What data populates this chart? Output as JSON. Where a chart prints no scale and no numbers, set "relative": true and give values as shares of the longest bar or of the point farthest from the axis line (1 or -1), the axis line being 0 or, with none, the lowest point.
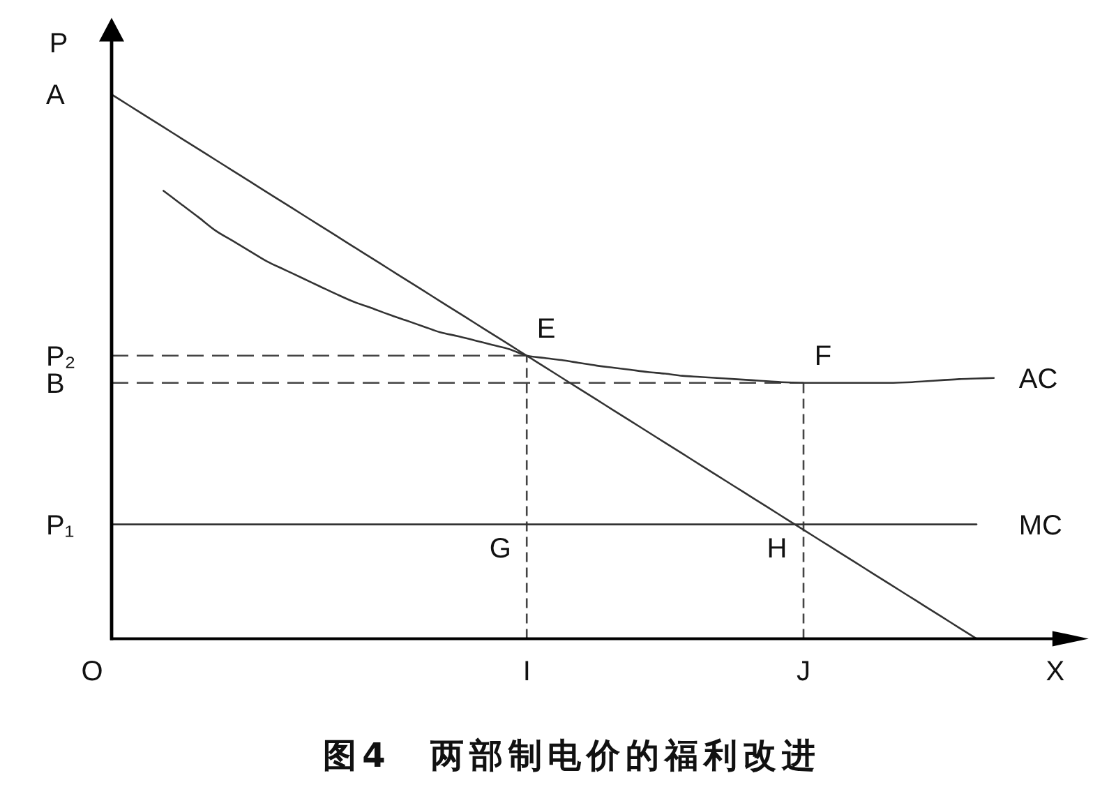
{
  "chart_data": {
    "type": "line",
    "title": "图4　两部制电价的福利改进",
    "xlabel": "X",
    "ylabel": "P",
    "relative": true,
    "categories": [
      null,
      null,
      null,
      null,
      null,
      null,
      null,
      null,
      null,
      null,
      null,
      null,
      null,
      null,
      null,
      null,
      null,
      null,
      null,
      null,
      null,
      null,
      null,
      null,
      "I",
      null,
      null,
      null,
      null,
      null,
      null,
      null,
      null,
      null,
      null,
      null,
      null,
      null,
      null,
      null,
      "J",
      null,
      null,
      null,
      null,
      null,
      null,
      null,
      null,
      null,
      null,
      null,
      null,
      null,
      null,
      null,
      null
    ],
    "series": [
      {
        "color": "#333333",
        "values": [
          1,
          0.98,
          0.96,
          0.94,
          0.92,
          0.9,
          0.88,
          0.86,
          0.84,
          0.82,
          0.8,
          0.78,
          0.76,
          0.74,
          0.72,
          0.7,
          0.68,
          0.66,
          0.64,
          0.62,
          0.6,
          0.58,
          0.56,
          0.54,
          0.52,
          0.5,
          0.48,
          0.46,
          0.44,
          0.42,
          0.4,
          0.38,
          0.36,
          0.34,
          0.32,
          0.3,
          0.28,
          0.26,
          0.24,
          0.22,
          0.2,
          0.18,
          0.16,
          0.14,
          0.12,
          0.1,
          0.08,
          0.06,
          0.04,
          0.02,
          0,
          null,
          null,
          null,
          null,
          null,
          null
        ]
      },
      {
        "name": "AC",
        "color": "#333333",
        "values": [
          null,
          null,
          null,
          0.823,
          0.799,
          0.775,
          0.75,
          0.731,
          0.712,
          0.693,
          0.678,
          0.663,
          0.648,
          0.633,
          0.619,
          0.608,
          0.596,
          0.585,
          0.574,
          0.563,
          0.556,
          0.548,
          0.54,
          0.532,
          0.52,
          0.516,
          0.512,
          0.507,
          0.502,
          0.498,
          0.494,
          0.49,
          0.487,
          0.483,
          0.481,
          0.479,
          0.477,
          0.475,
          0.473,
          0.471,
          0.47,
          0.47,
          0.47,
          0.47,
          0.47,
          0.47,
          0.471,
          0.473,
          0.475,
          0.477,
          0.478,
          0.479,
          null,
          null,
          null,
          null,
          null
        ]
      },
      {
        "name": "MC",
        "color": "#333333",
        "values": [
          0.21,
          0.21,
          0.21,
          0.21,
          0.21,
          0.21,
          0.21,
          0.21,
          0.21,
          0.21,
          0.21,
          0.21,
          0.21,
          0.21,
          0.21,
          0.21,
          0.21,
          0.21,
          0.21,
          0.21,
          0.21,
          0.21,
          0.21,
          0.21,
          0.21,
          0.21,
          0.21,
          0.21,
          0.21,
          0.21,
          0.21,
          0.21,
          0.21,
          0.21,
          0.21,
          0.21,
          0.21,
          0.21,
          0.21,
          0.21,
          0.21,
          0.21,
          0.21,
          0.21,
          0.21,
          0.21,
          0.21,
          0.21,
          0.21,
          0.21,
          0.21,
          null,
          null,
          null,
          null,
          null,
          null
        ]
      }
    ],
    "ref_lines": [
      {
        "axis": "y",
        "value": 0.52,
        "label": "P₂",
        "line_style": "dashed",
        "color": "#444444"
      },
      {
        "axis": "y",
        "value": 0.47,
        "label": "B",
        "line_style": "dashed",
        "color": "#444444"
      },
      {
        "axis": "x",
        "value": "I",
        "line_style": "dashed",
        "color": "#444444"
      },
      {
        "axis": "x",
        "value": "J",
        "line_style": "dashed",
        "color": "#444444"
      }
    ],
    "annotations": [
      "A",
      "P₁",
      "O",
      {
        "text": "E",
        "x": "I",
        "y": 0.52
      },
      {
        "text": "F",
        "x": "J",
        "y": 0.47
      },
      {
        "text": "G",
        "x": "I",
        "y": 0.21
      },
      {
        "text": "H",
        "x": "J",
        "y": 0.21
      }
    ]
  }
}
